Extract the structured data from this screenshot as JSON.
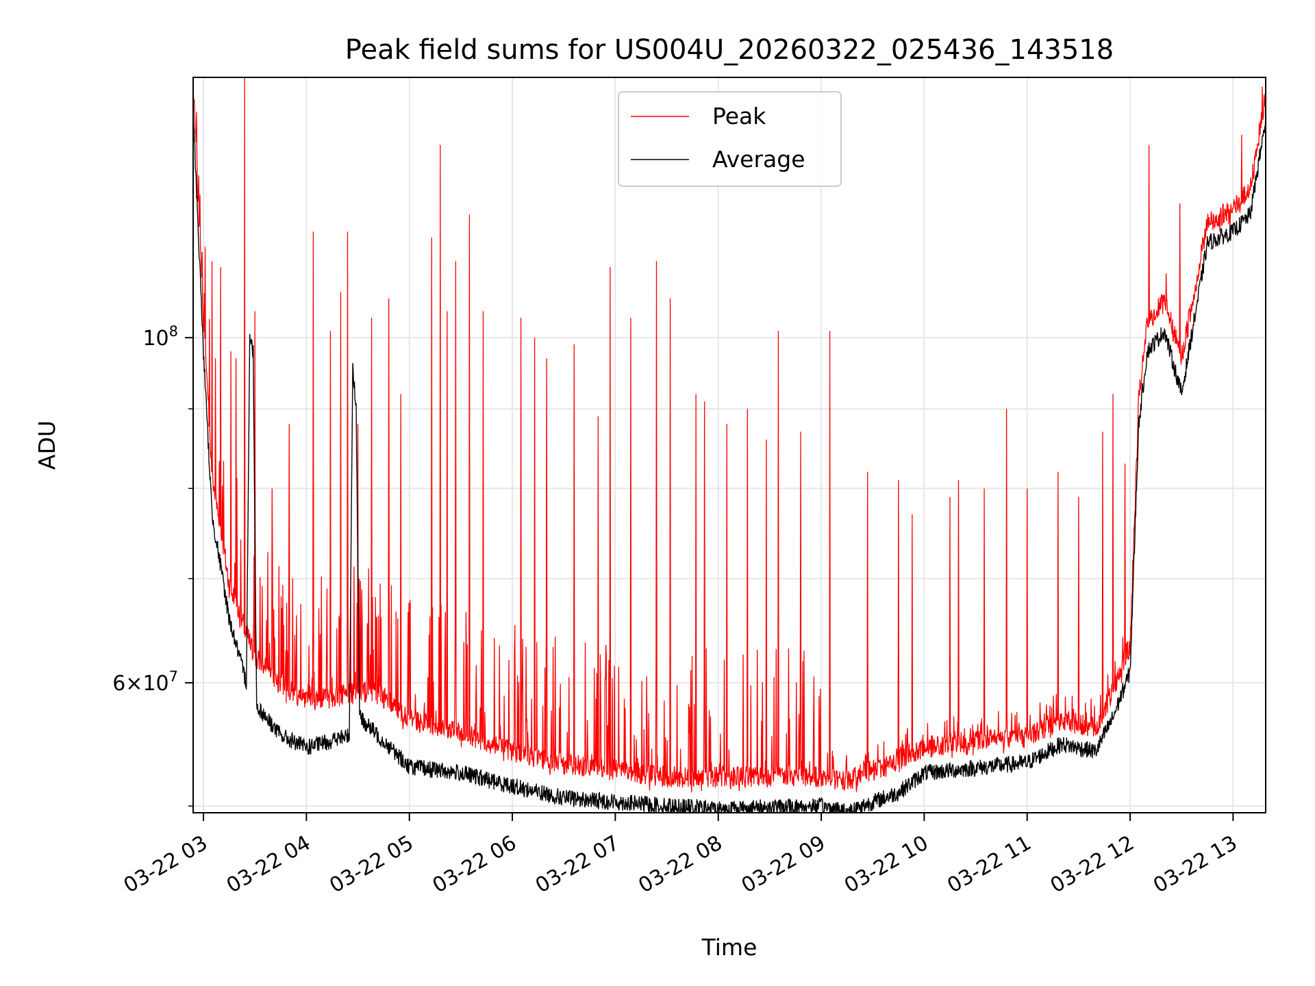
{
  "chart_data": {
    "type": "line",
    "title": "Peak field sums for US004U_20260322_025436_143518",
    "xlabel": "Time",
    "ylabel": "ADU",
    "y_scale": "log",
    "ylim": [
      49500000,
      147000000
    ],
    "xlim": [
      "2026-03-22 02:54",
      "2026-03-22 13:19"
    ],
    "grid": true,
    "legend_position": "upper center",
    "x_ticks": [
      "03-22 03",
      "03-22 04",
      "03-22 05",
      "03-22 06",
      "03-22 07",
      "03-22 08",
      "03-22 09",
      "03-22 10",
      "03-22 11",
      "03-22 12",
      "03-22 13"
    ],
    "y_tick_labels": [
      {
        "value": 100000000,
        "label": "10^8"
      },
      {
        "value": 60000000,
        "label": "6×10^7"
      }
    ],
    "y_minor_ticks": [
      50000000,
      70000000,
      80000000,
      90000000
    ],
    "x_tick_label_rotation_deg": 30,
    "series": [
      {
        "name": "Peak",
        "color": "#ff0000",
        "baseline": [
          [
            "2026-03-22 02:54",
            143000000
          ],
          [
            "2026-03-22 03:00",
            100000000
          ],
          [
            "2026-03-22 03:05",
            80000000
          ],
          [
            "2026-03-22 03:15",
            68000000
          ],
          [
            "2026-03-22 03:30",
            61000000
          ],
          [
            "2026-03-22 03:45",
            58500000
          ],
          [
            "2026-03-22 04:00",
            57000000
          ],
          [
            "2026-03-22 04:20",
            57500000
          ],
          [
            "2026-03-22 04:40",
            58000000
          ],
          [
            "2026-03-22 05:00",
            55500000
          ],
          [
            "2026-03-22 05:30",
            54500000
          ],
          [
            "2026-03-22 06:00",
            53000000
          ],
          [
            "2026-03-22 06:30",
            52000000
          ],
          [
            "2026-03-22 07:00",
            51500000
          ],
          [
            "2026-03-22 07:30",
            51000000
          ],
          [
            "2026-03-22 08:00",
            51000000
          ],
          [
            "2026-03-22 08:30",
            51000000
          ],
          [
            "2026-03-22 09:00",
            51000000
          ],
          [
            "2026-03-22 09:15",
            50700000
          ],
          [
            "2026-03-22 09:45",
            52300000
          ],
          [
            "2026-03-22 10:00",
            53300000
          ],
          [
            "2026-03-22 10:30",
            53800000
          ],
          [
            "2026-03-22 11:00",
            54200000
          ],
          [
            "2026-03-22 11:20",
            55500000
          ],
          [
            "2026-03-22 11:40",
            54800000
          ],
          [
            "2026-03-22 11:50",
            58000000
          ],
          [
            "2026-03-22 12:00",
            62000000
          ],
          [
            "2026-03-22 12:05",
            89000000
          ],
          [
            "2026-03-22 12:10",
            100000000
          ],
          [
            "2026-03-22 12:20",
            103000000
          ],
          [
            "2026-03-22 12:30",
            95000000
          ],
          [
            "2026-03-22 12:45",
            116000000
          ],
          [
            "2026-03-22 13:00",
            118000000
          ],
          [
            "2026-03-22 13:10",
            122000000
          ],
          [
            "2026-03-22 13:19",
            140000000
          ]
        ],
        "spikes": [
          [
            "2026-03-22 03:05",
            112000000
          ],
          [
            "2026-03-22 03:07",
            97000000
          ],
          [
            "2026-03-22 03:10",
            111000000
          ],
          [
            "2026-03-22 03:16",
            98000000
          ],
          [
            "2026-03-22 03:19",
            97000000
          ],
          [
            "2026-03-22 03:24",
            147000000
          ],
          [
            "2026-03-22 03:30",
            104000000
          ],
          [
            "2026-03-22 03:40",
            80000000
          ],
          [
            "2026-03-22 03:50",
            88000000
          ],
          [
            "2026-03-22 04:04",
            117000000
          ],
          [
            "2026-03-22 04:14",
            101000000
          ],
          [
            "2026-03-22 04:20",
            107000000
          ],
          [
            "2026-03-22 04:24",
            117000000
          ],
          [
            "2026-03-22 04:30",
            88000000
          ],
          [
            "2026-03-22 04:38",
            103000000
          ],
          [
            "2026-03-22 04:48",
            106000000
          ],
          [
            "2026-03-22 04:55",
            92000000
          ],
          [
            "2026-03-22 05:13",
            116000000
          ],
          [
            "2026-03-22 05:18",
            133000000
          ],
          [
            "2026-03-22 05:22",
            104000000
          ],
          [
            "2026-03-22 05:27",
            112000000
          ],
          [
            "2026-03-22 05:35",
            120000000
          ],
          [
            "2026-03-22 05:43",
            104000000
          ],
          [
            "2026-03-22 06:05",
            103000000
          ],
          [
            "2026-03-22 06:13",
            100000000
          ],
          [
            "2026-03-22 06:20",
            97000000
          ],
          [
            "2026-03-22 06:36",
            99000000
          ],
          [
            "2026-03-22 06:50",
            89000000
          ],
          [
            "2026-03-22 06:57",
            111000000
          ],
          [
            "2026-03-22 07:09",
            103000000
          ],
          [
            "2026-03-22 07:24",
            112000000
          ],
          [
            "2026-03-22 07:32",
            106000000
          ],
          [
            "2026-03-22 07:47",
            92000000
          ],
          [
            "2026-03-22 07:52",
            91000000
          ],
          [
            "2026-03-22 08:05",
            88000000
          ],
          [
            "2026-03-22 08:17",
            90000000
          ],
          [
            "2026-03-22 08:28",
            86000000
          ],
          [
            "2026-03-22 08:35",
            101000000
          ],
          [
            "2026-03-22 08:48",
            87000000
          ],
          [
            "2026-03-22 09:05",
            101000000
          ],
          [
            "2026-03-22 09:27",
            82000000
          ],
          [
            "2026-03-22 09:45",
            81000000
          ],
          [
            "2026-03-22 09:53",
            77000000
          ],
          [
            "2026-03-22 10:15",
            79000000
          ],
          [
            "2026-03-22 10:20",
            81000000
          ],
          [
            "2026-03-22 10:35",
            80000000
          ],
          [
            "2026-03-22 10:48",
            90000000
          ],
          [
            "2026-03-22 11:00",
            80000000
          ],
          [
            "2026-03-22 11:18",
            82000000
          ],
          [
            "2026-03-22 11:30",
            79000000
          ],
          [
            "2026-03-22 11:44",
            87000000
          ],
          [
            "2026-03-22 11:50",
            92000000
          ],
          [
            "2026-03-22 11:57",
            83000000
          ],
          [
            "2026-03-22 12:11",
            133000000
          ],
          [
            "2026-03-22 12:16",
            103000000
          ],
          [
            "2026-03-22 12:21",
            110000000
          ],
          [
            "2026-03-22 12:29",
            122000000
          ],
          [
            "2026-03-22 13:05",
            135000000
          ],
          [
            "2026-03-22 13:17",
            145000000
          ]
        ]
      },
      {
        "name": "Average",
        "color": "#000000",
        "baseline": [
          [
            "2026-03-22 02:54",
            140000000
          ],
          [
            "2026-03-22 03:00",
            98000000
          ],
          [
            "2026-03-22 03:05",
            77000000
          ],
          [
            "2026-03-22 03:15",
            66000000
          ],
          [
            "2026-03-22 03:25",
            60000000
          ],
          [
            "2026-03-22 03:27",
            100000000
          ],
          [
            "2026-03-22 03:29",
            98000000
          ],
          [
            "2026-03-22 03:31",
            58000000
          ],
          [
            "2026-03-22 03:45",
            55500000
          ],
          [
            "2026-03-22 04:00",
            54500000
          ],
          [
            "2026-03-22 04:25",
            55500000
          ],
          [
            "2026-03-22 04:27",
            96000000
          ],
          [
            "2026-03-22 04:29",
            90000000
          ],
          [
            "2026-03-22 04:31",
            57000000
          ],
          [
            "2026-03-22 05:00",
            53000000
          ],
          [
            "2026-03-22 05:30",
            52500000
          ],
          [
            "2026-03-22 06:00",
            51500000
          ],
          [
            "2026-03-22 06:30",
            50600000
          ],
          [
            "2026-03-22 07:00",
            50300000
          ],
          [
            "2026-03-22 07:30",
            50000000
          ],
          [
            "2026-03-22 08:00",
            49800000
          ],
          [
            "2026-03-22 08:30",
            49900000
          ],
          [
            "2026-03-22 09:00",
            50000000
          ],
          [
            "2026-03-22 09:15",
            49600000
          ],
          [
            "2026-03-22 09:45",
            51000000
          ],
          [
            "2026-03-22 10:00",
            52500000
          ],
          [
            "2026-03-22 10:30",
            52900000
          ],
          [
            "2026-03-22 11:00",
            53300000
          ],
          [
            "2026-03-22 11:20",
            54800000
          ],
          [
            "2026-03-22 11:40",
            54200000
          ],
          [
            "2026-03-22 11:50",
            57000000
          ],
          [
            "2026-03-22 12:00",
            61000000
          ],
          [
            "2026-03-22 12:05",
            88000000
          ],
          [
            "2026-03-22 12:10",
            98000000
          ],
          [
            "2026-03-22 12:20",
            101000000
          ],
          [
            "2026-03-22 12:30",
            92000000
          ],
          [
            "2026-03-22 12:45",
            115000000
          ],
          [
            "2026-03-22 13:00",
            117000000
          ],
          [
            "2026-03-22 13:10",
            120000000
          ],
          [
            "2026-03-22 13:19",
            138000000
          ]
        ]
      }
    ]
  }
}
